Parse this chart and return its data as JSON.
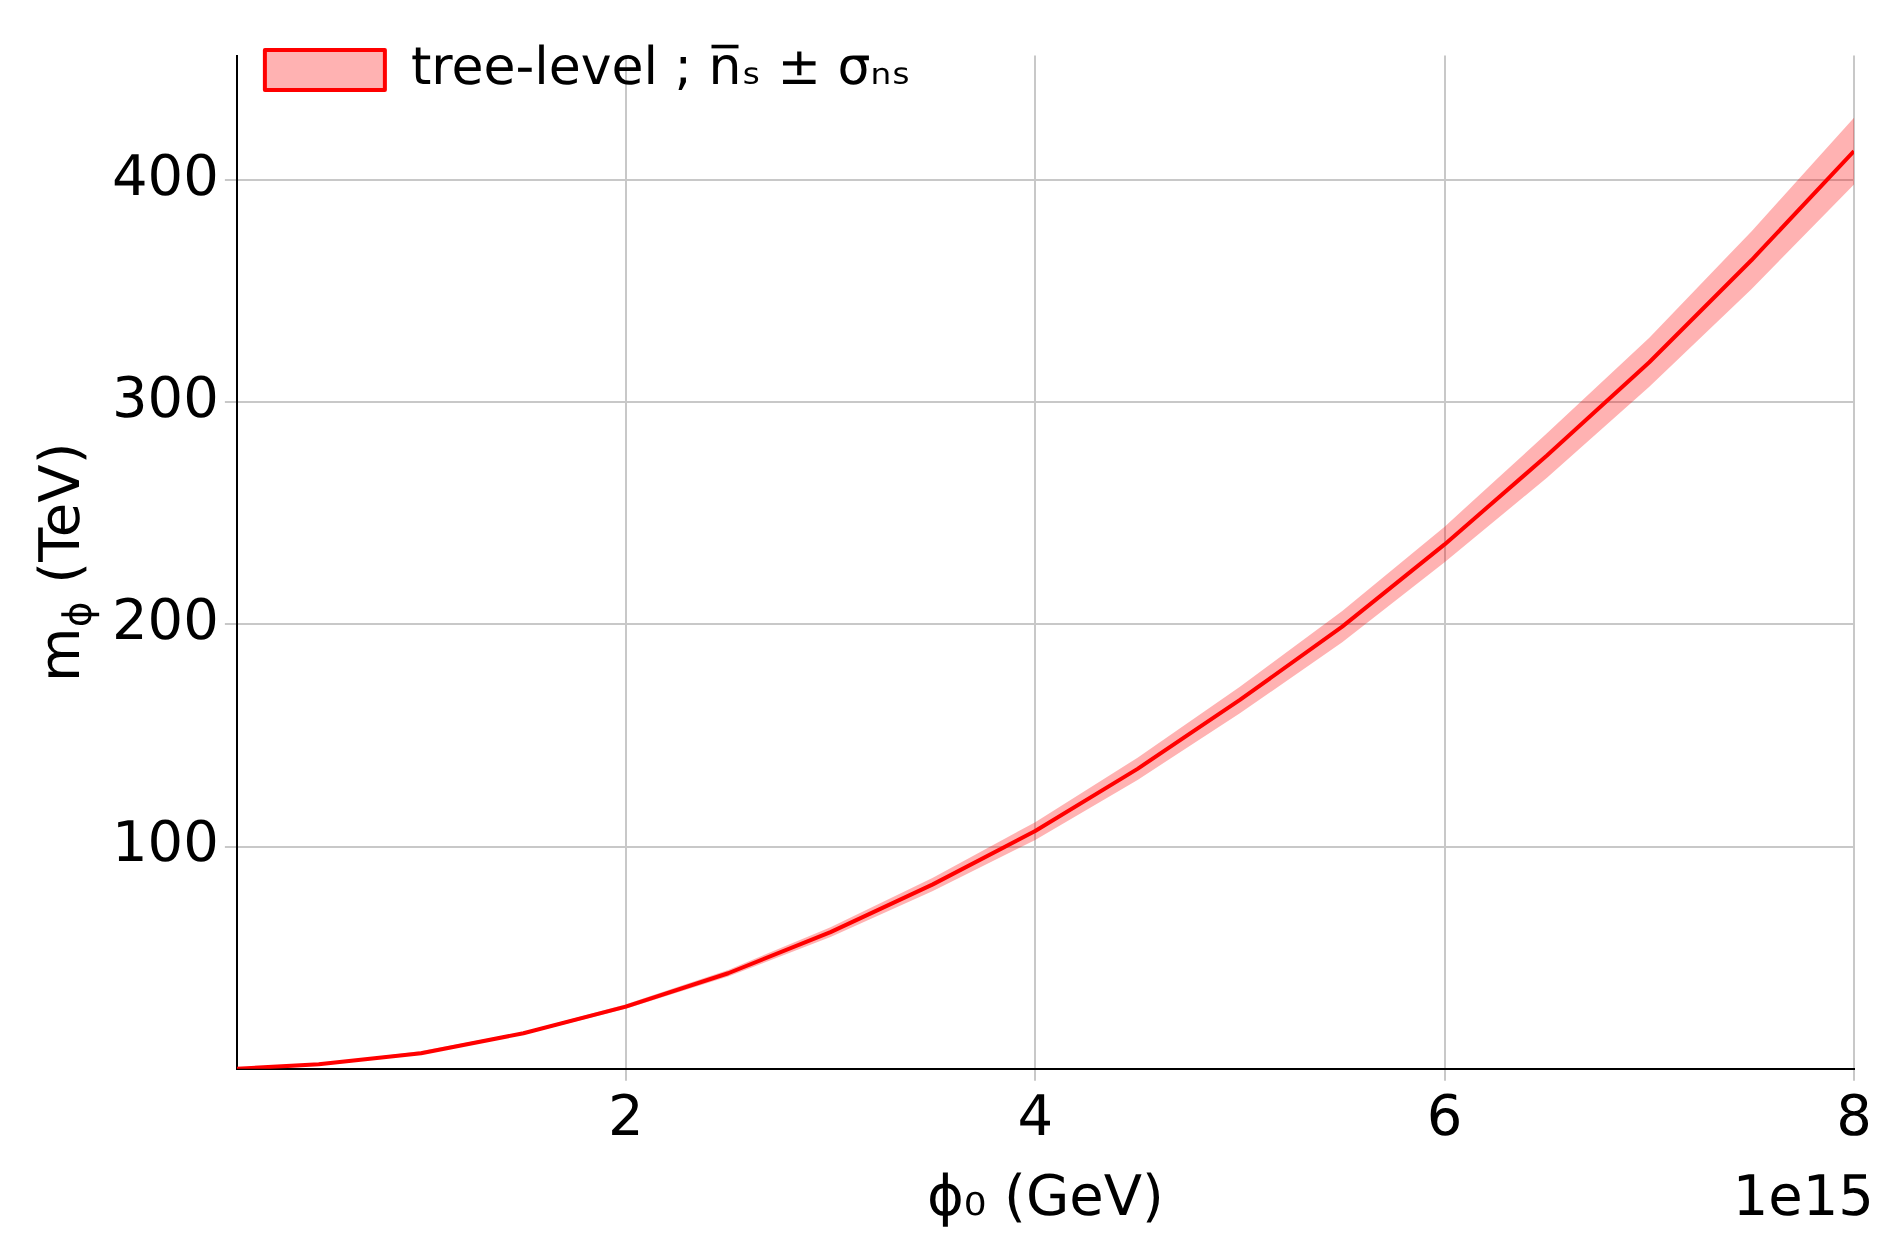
{
  "chart_data": {
    "type": "line",
    "xlabel": "ϕ₀ (GeV)",
    "ylabel": "m$_{ϕ}$ (TeV)",
    "annotations": [
      "1e15"
    ],
    "x": [
      0.1,
      0.5,
      1,
      1.5,
      2,
      2.5,
      3,
      3.5,
      4,
      4.5,
      5,
      5.5,
      6,
      6.5,
      7,
      7.5,
      8
    ],
    "series": [
      {
        "name": "tree-level ; n̅ₛ ± σₙₛ",
        "color": "#ff0000",
        "values": [
          0,
          2,
          7,
          16,
          28,
          43,
          61.5,
          83,
          107,
          135,
          166,
          199,
          236,
          276,
          318,
          364,
          413
        ],
        "lower": [
          0,
          2,
          7,
          15.4,
          27,
          41.5,
          59.3,
          80,
          103,
          130,
          160,
          192,
          228,
          266,
          307,
          351,
          398
        ],
        "upper": [
          0,
          2,
          8,
          16.6,
          29,
          44.5,
          63.7,
          86,
          111,
          140,
          172,
          206,
          244,
          286,
          329,
          377,
          428
        ]
      }
    ],
    "xlim": [
      0.1,
      8
    ],
    "xticks": [
      2,
      4,
      6,
      8
    ],
    "ylim": [
      0,
      456
    ],
    "yticks": [
      100,
      200,
      300,
      400
    ],
    "grid": true,
    "legend": "top left",
    "marker": "none",
    "line_style": "solid"
  }
}
